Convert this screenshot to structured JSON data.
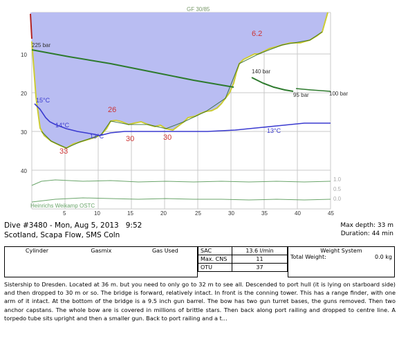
{
  "profile": {
    "gradient_factor_label": "GF 30/85",
    "ceiling_label": "6.2",
    "depth_axis_labels": [
      "10",
      "20",
      "30",
      "40"
    ],
    "time_axis_labels": [
      "5",
      "10",
      "15",
      "20",
      "25",
      "30",
      "35",
      "40",
      "45"
    ],
    "pressure_labels": [
      "225 bar",
      "140 bar",
      "95 bar",
      "100 bar"
    ],
    "temperature_labels": [
      "15°C",
      "14°C",
      "13°C",
      "13°C"
    ],
    "depth_labels": [
      "33",
      "26",
      "30",
      "30"
    ],
    "right_scale_labels": [
      "1.0",
      "0.5",
      "0.0"
    ],
    "watermark": "Heinrichs Weikamp OSTC",
    "colors": {
      "depth_fill": "#b9bdf2",
      "depth_line": "#cccc33",
      "pressure_line": "#2d7a2d",
      "temperature_line": "#3a3ad0",
      "ceiling_fill": "#f7c1c1",
      "depth_label": "#cc3333",
      "grid": "#c8c8c8"
    }
  },
  "dive": {
    "title": "Dive #3480 - Mon, Aug 5, 2013   9:52",
    "location": "Scotland, Scapa Flow, SMS Coln",
    "max_depth": "Max depth: 33 m",
    "duration": "Duration: 44 min"
  },
  "table": {
    "col_cylinder": "Cylinder",
    "col_gasmix": "Gasmix",
    "col_gas_used": "Gas Used",
    "sac_label": "SAC",
    "sac_value": "13.6 l/min",
    "cns_label": "Max. CNS",
    "cns_value": "11",
    "otu_label": "OTU",
    "otu_value": "37",
    "weight_header": "Weight System",
    "weight_label": "Total Weight:",
    "weight_value": "0.0 kg"
  },
  "notes": "Sistership to Dresden. Located at 36 m. but you need to only go to 32 m to see all. Descended to port hull (it is lying on starboard side) and then dropped to 30 m or so. The bridge is forward, relatively intact. In front is the conning tower. This has a range finder, with one arm of it intact. At the bottom of the bridge is a 9.5 inch gun barrel. The bow has two gun turret bases, the guns removed. Then two anchor capstans. The whole bow are is covered in millions of brittle stars. Then back along port railing and dropped to centre line. A torpedo tube sits upright and then a smaller gun. Back to port railing and a t..."
}
